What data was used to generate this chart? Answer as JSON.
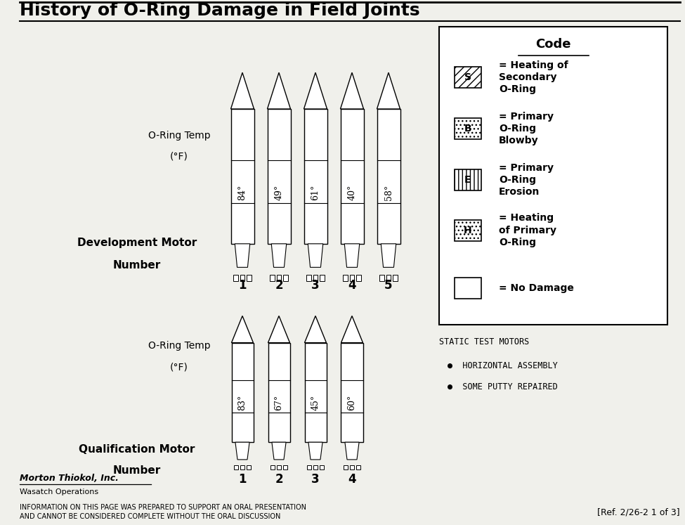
{
  "title": "History of O-Ring Damage in Field Joints",
  "bg_color": "#f0f0eb",
  "dev_motor_temps": [
    "84°",
    "49°",
    "61°",
    "40°",
    "58°"
  ],
  "qual_motor_temps": [
    "83°",
    "67°",
    "45°",
    "60°"
  ],
  "dev_motor_numbers": [
    "1",
    "2",
    "3",
    "4",
    "5"
  ],
  "qual_motor_numbers": [
    "1",
    "2",
    "3",
    "4"
  ],
  "footer_left_line1": "Morton Thiokol, Inc.",
  "footer_left_line2": "Wasatch Operations",
  "footer_bottom": "INFORMATION ON THIS PAGE WAS PREPARED TO SUPPORT AN ORAL PRESENTATION\nAND CANNOT BE CONSIDERED COMPLETE WITHOUT THE ORAL DISCUSSION",
  "footer_right": "[Ref. 2/26-2 1 of 3]",
  "static_test_title": "STATIC TEST MOTORS",
  "static_test_bullets": [
    "HORIZONTAL ASSEMBLY",
    "SOME PUTTY REPAIRED"
  ],
  "code_items": [
    {
      "letter": "S",
      "hatch": "///",
      "text": "= Heating of\nSecondary\nO-Ring"
    },
    {
      "letter": "B",
      "hatch": "...",
      "text": "= Primary\nO-Ring\nBlowby"
    },
    {
      "letter": "E",
      "hatch": "|||",
      "text": "= Primary\nO-Ring\nErosion"
    },
    {
      "letter": "H",
      "hatch": "...",
      "text": "= Heating\nof Primary\nO-Ring"
    },
    {
      "letter": "",
      "hatch": "",
      "text": "= No Damage"
    }
  ]
}
